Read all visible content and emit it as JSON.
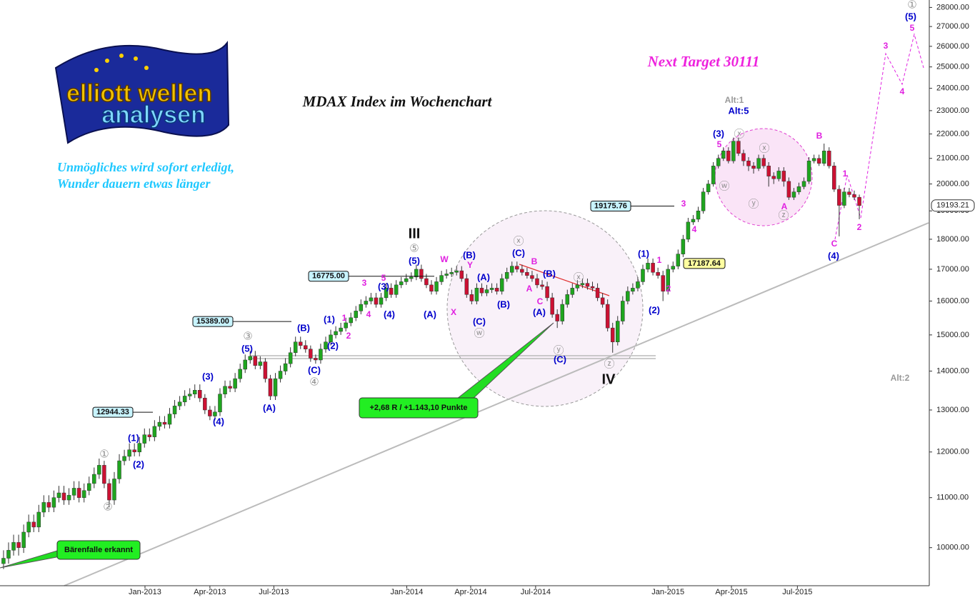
{
  "chart_data": {
    "type": "candlestick",
    "title": "MDAX Index im Wochenchart",
    "target": "Next Target 30111",
    "tagline": [
      "Unmögliches wird sofort erledigt,",
      "Wunder dauern etwas länger"
    ],
    "logo": [
      "elliott wellen",
      "analysen"
    ],
    "log_scale": true,
    "ylim": [
      9300,
      28400
    ],
    "xlim": [
      -0.7,
      183.9
    ],
    "yticks": [
      {
        "value": 10000,
        "label": "10000.00"
      },
      {
        "value": 11000,
        "label": "11000.00"
      },
      {
        "value": 12000,
        "label": "12000.00"
      },
      {
        "value": 13000,
        "label": "13000.00"
      },
      {
        "value": 14000,
        "label": "14000.00"
      },
      {
        "value": 15000,
        "label": "15000.00"
      },
      {
        "value": 16000,
        "label": "16000.00"
      },
      {
        "value": 17000,
        "label": "17000.00"
      },
      {
        "value": 18000,
        "label": "18000.00"
      },
      {
        "value": 19000,
        "label": "19000.00"
      },
      {
        "value": 20000,
        "label": "20000.00"
      },
      {
        "value": 21000,
        "label": "21000.00"
      },
      {
        "value": 22000,
        "label": "22000.00"
      },
      {
        "value": 23000,
        "label": "23000.00"
      },
      {
        "value": 24000,
        "label": "24000.00"
      },
      {
        "value": 25000,
        "label": "25000.00"
      },
      {
        "value": 26000,
        "label": "26000.00"
      },
      {
        "value": 27000,
        "label": "27000.00"
      },
      {
        "value": 28000,
        "label": "28000.00"
      }
    ],
    "xticks": [
      {
        "value": 28.1,
        "label": "Jan-2013"
      },
      {
        "value": 41,
        "label": "Apr-2013"
      },
      {
        "value": 53.7,
        "label": "Jul-2013"
      },
      {
        "value": 80.1,
        "label": "Jan-2014"
      },
      {
        "value": 92.8,
        "label": "Apr-2014"
      },
      {
        "value": 105.7,
        "label": "Jul-2014"
      },
      {
        "value": 132,
        "label": "Jan-2015"
      },
      {
        "value": 144.6,
        "label": "Apr-2015"
      },
      {
        "value": 157.7,
        "label": "Jul-2015"
      }
    ],
    "up_color": "#1fa51f",
    "down_color": "#cc1133",
    "open": [
      9700,
      9800,
      9950,
      10100,
      10000,
      10300,
      10500,
      10400,
      10700,
      10900,
      10800,
      11000,
      11100,
      10950,
      11050,
      11200,
      11000,
      11150,
      11300,
      11500,
      11700,
      11300,
      10950,
      11400,
      11800,
      11900,
      12050,
      12000,
      12200,
      12400,
      12350,
      12600,
      12700,
      12650,
      12900,
      13100,
      13200,
      13350,
      13400,
      13500,
      13300,
      13000,
      12850,
      12950,
      13400,
      13600,
      13550,
      13800,
      14050,
      14300,
      14400,
      14150,
      14250,
      13800,
      13350,
      13800,
      14000,
      14200,
      14500,
      14800,
      14700,
      14600,
      14350,
      14300,
      14600,
      14800,
      15000,
      15100,
      15200,
      15350,
      15500,
      15700,
      15900,
      16000,
      16100,
      15900,
      16100,
      16400,
      16200,
      16500,
      16600,
      16700,
      16750,
      17000,
      16700,
      16500,
      16300,
      16600,
      16800,
      16850,
      16900,
      16950,
      16700,
      16200,
      16000,
      16400,
      16250,
      16350,
      16400,
      16300,
      16700,
      16900,
      17100,
      17000,
      16900,
      16800,
      16700,
      16500,
      16450,
      16100,
      15600,
      15400,
      15900,
      16200,
      16400,
      16500,
      16550,
      16450,
      16400,
      16100,
      15900,
      15200,
      14800,
      15400,
      16000,
      16300,
      16400,
      16600,
      17000,
      17200,
      16900,
      16800,
      16300,
      17000,
      17100,
      17500,
      18000,
      18600,
      18700,
      19000,
      19700,
      20000,
      20700,
      21000,
      21300,
      20900,
      21700,
      21200,
      20900,
      20700,
      20600,
      21000,
      20700,
      20300,
      20200,
      20500,
      20100,
      19500,
      19700,
      19900,
      20100,
      20900,
      21000,
      20800,
      21300,
      20700,
      19800,
      19200,
      19700,
      19600,
      19500
    ],
    "high": [
      9950,
      10100,
      10250,
      10250,
      10450,
      10650,
      10650,
      10850,
      11050,
      11050,
      11150,
      11250,
      11250,
      11200,
      11350,
      11350,
      11300,
      11450,
      11650,
      11850,
      11800,
      11400,
      11550,
      11950,
      12050,
      12200,
      12200,
      12350,
      12550,
      12550,
      12750,
      12850,
      12850,
      13050,
      13250,
      13350,
      13500,
      13550,
      13650,
      13650,
      13400,
      13100,
      13100,
      13550,
      13750,
      13750,
      13950,
      14200,
      14450,
      14550,
      14550,
      14400,
      14350,
      13900,
      13950,
      14150,
      14350,
      14650,
      14950,
      14950,
      14850,
      14700,
      14450,
      14750,
      14950,
      15150,
      15250,
      15350,
      15500,
      15650,
      15850,
      16050,
      16150,
      16250,
      16250,
      16250,
      16550,
      16550,
      16650,
      16750,
      16850,
      16900,
      17150,
      17150,
      16850,
      16650,
      16750,
      16950,
      17000,
      17050,
      17100,
      17100,
      16850,
      16350,
      16550,
      16550,
      16500,
      16550,
      16550,
      16850,
      17050,
      17250,
      17250,
      17150,
      17050,
      16950,
      16850,
      16650,
      16600,
      16250,
      15750,
      16050,
      16350,
      16550,
      16650,
      16700,
      16700,
      16600,
      16550,
      16250,
      16050,
      15350,
      15550,
      16150,
      16450,
      16550,
      16750,
      17150,
      17350,
      17350,
      17050,
      16950,
      17150,
      17250,
      17650,
      18150,
      18750,
      18850,
      19150,
      19850,
      20150,
      20850,
      21150,
      21450,
      21450,
      21850,
      21850,
      21350,
      21050,
      20850,
      21150,
      21150,
      20850,
      20450,
      20650,
      20650,
      20250,
      19850,
      20050,
      20250,
      21050,
      21150,
      21150,
      21600,
      21450,
      20850,
      19950,
      19850,
      19850,
      19750,
      19600
    ],
    "low": [
      9600,
      9700,
      9850,
      9850,
      9900,
      10200,
      10300,
      10300,
      10600,
      10700,
      10700,
      10900,
      10850,
      10850,
      10950,
      10900,
      10900,
      11050,
      11200,
      11400,
      11200,
      10800,
      10850,
      11300,
      11700,
      11800,
      11900,
      11900,
      12100,
      12250,
      12250,
      12500,
      12550,
      12550,
      12800,
      13000,
      13100,
      13250,
      13300,
      13200,
      12900,
      12750,
      12750,
      12850,
      13300,
      13450,
      13450,
      13700,
      13950,
      14200,
      14050,
      14050,
      13700,
      13250,
      13250,
      13700,
      13900,
      14100,
      14400,
      14600,
      14500,
      14250,
      14200,
      14200,
      14500,
      14700,
      14900,
      15000,
      15100,
      15250,
      15400,
      15600,
      15800,
      15900,
      15800,
      15800,
      16000,
      16100,
      16100,
      16400,
      16500,
      16600,
      16650,
      16600,
      16400,
      16200,
      16200,
      16500,
      16700,
      16750,
      16800,
      16600,
      16100,
      15900,
      15900,
      16150,
      16150,
      16250,
      16200,
      16200,
      16600,
      16800,
      16900,
      16800,
      16700,
      16600,
      16400,
      16350,
      16000,
      15500,
      15200,
      15300,
      15800,
      16100,
      16300,
      16400,
      16350,
      16300,
      16000,
      15800,
      15100,
      14500,
      14700,
      15300,
      15900,
      16200,
      16300,
      16500,
      16900,
      16800,
      16700,
      16000,
      16200,
      16900,
      17000,
      17400,
      17900,
      18500,
      18600,
      18900,
      19600,
      19900,
      20600,
      20900,
      20800,
      20800,
      21100,
      20700,
      20500,
      20400,
      20500,
      20600,
      19900,
      20000,
      20100,
      19900,
      19400,
      19400,
      19600,
      19800,
      20000,
      20800,
      20700,
      20700,
      20600,
      19700,
      18100,
      19100,
      19500,
      19400,
      18700
    ],
    "close": [
      9800,
      9950,
      10100,
      10000,
      10300,
      10500,
      10400,
      10700,
      10900,
      10800,
      11000,
      11100,
      10950,
      11050,
      11200,
      11000,
      11150,
      11300,
      11500,
      11700,
      11300,
      10950,
      11400,
      11800,
      11900,
      12050,
      12000,
      12200,
      12400,
      12350,
      12600,
      12700,
      12650,
      12900,
      13100,
      13200,
      13350,
      13400,
      13500,
      13300,
      13000,
      12850,
      12950,
      13400,
      13600,
      13550,
      13800,
      14050,
      14300,
      14400,
      14150,
      14250,
      13800,
      13350,
      13800,
      14000,
      14200,
      14500,
      14800,
      14700,
      14600,
      14350,
      14300,
      14600,
      14800,
      15000,
      15100,
      15200,
      15350,
      15500,
      15700,
      15900,
      16000,
      16100,
      15900,
      16100,
      16400,
      16200,
      16500,
      16600,
      16700,
      16750,
      17000,
      16700,
      16500,
      16300,
      16600,
      16800,
      16850,
      16900,
      16950,
      16700,
      16200,
      16000,
      16400,
      16250,
      16350,
      16400,
      16300,
      16700,
      16900,
      17100,
      17000,
      16900,
      16800,
      16700,
      16500,
      16450,
      16100,
      15600,
      15400,
      15900,
      16200,
      16400,
      16500,
      16550,
      16450,
      16400,
      16100,
      15900,
      15200,
      14800,
      15400,
      16000,
      16300,
      16400,
      16600,
      17000,
      17200,
      16900,
      16800,
      16300,
      17000,
      17100,
      17500,
      18000,
      18600,
      18700,
      19000,
      19700,
      20000,
      20700,
      21000,
      21300,
      20900,
      21700,
      21200,
      20900,
      20700,
      20600,
      21000,
      20700,
      20300,
      20200,
      20500,
      20100,
      19500,
      19700,
      19900,
      20100,
      20900,
      21000,
      20800,
      21300,
      20700,
      19800,
      19200,
      19700,
      19600,
      19500,
      19193.21
    ],
    "last_price": 19193.21,
    "price_levels": [
      {
        "value": 12944.33,
        "label": "12944.33"
      },
      {
        "value": 15389,
        "label": "15389.00"
      },
      {
        "value": 16775,
        "label": "16775.00"
      },
      {
        "value": 19175.76,
        "label": "19175.76"
      },
      {
        "value": 17187.64,
        "label": "17187.64"
      }
    ],
    "callouts": [
      "+2,68 R / +1.143,10 Punkte",
      "Bärenfalle erkannt"
    ],
    "annotations": [
      "(1)",
      "(2)",
      "(3)",
      "(4)",
      "(5)",
      "(A)",
      "(B)",
      "(C)",
      "(1)",
      "(2)",
      "(3)",
      "(4)",
      "(5)",
      "(A)",
      "(B)",
      "(A)",
      "(C)",
      "(B)",
      "(C)",
      "(B)",
      "(A)",
      "(C)",
      "(1)",
      "(2)",
      "(3)",
      "Alt:5",
      "(5)",
      "(4)",
      "W",
      "Y",
      "X",
      "B",
      "A",
      "C",
      "3",
      "5",
      "4",
      "1",
      "2",
      "1",
      "2",
      "3",
      "4",
      "5",
      "B",
      "A",
      "1",
      "C",
      "2",
      "3",
      "4",
      "5",
      "①",
      "②",
      "③",
      "④",
      "⑤",
      "ⓧ",
      "ⓦ",
      "ⓧ",
      "ⓨ",
      "ⓩ",
      "ⓧ",
      "ⓧ",
      "ⓦ",
      "ⓨ",
      "ⓩ",
      "①",
      "III",
      "IV",
      "Alt:1",
      "Alt:2"
    ]
  }
}
